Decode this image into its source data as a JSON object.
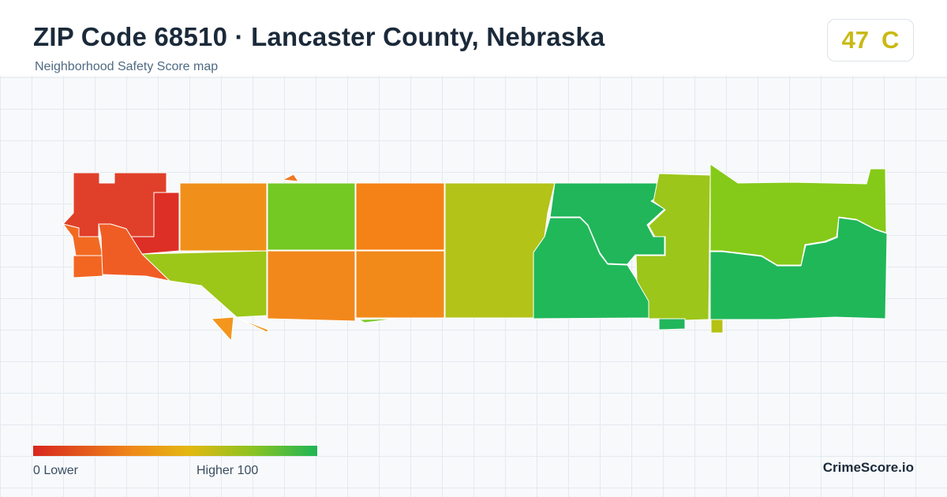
{
  "header": {
    "title": "ZIP Code 68510 · Lancaster County, Nebraska",
    "subtitle": "Neighborhood Safety Score map"
  },
  "score": {
    "value": "47",
    "grade": "C",
    "color": "#c9b914"
  },
  "legend": {
    "low_label": "0  Lower",
    "high_label": "Higher  100",
    "colors": [
      "#d7261e",
      "#f0891a",
      "#e3b812",
      "#87c322",
      "#1eb656"
    ]
  },
  "brand": "CrimeScore.io"
}
